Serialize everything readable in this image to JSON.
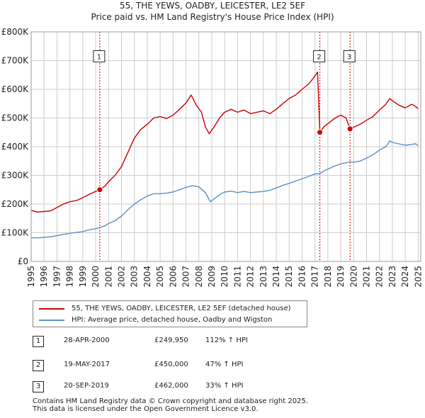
{
  "title": "55, THE YEWS, OADBY, LEICESTER, LE2 5EF",
  "subtitle": "Price paid vs. HM Land Registry's House Price Index (HPI)",
  "colors": {
    "property": "#cc0000",
    "hpi": "#5b8fc9",
    "grid": "#cccccc",
    "marker_line": "#cc0000"
  },
  "chart_data": {
    "type": "line",
    "title": "55, THE YEWS, OADBY, LEICESTER, LE2 5EF",
    "subtitle": "Price paid vs. HM Land Registry's House Price Index (HPI)",
    "xlabel": "",
    "ylabel": "",
    "xlim": [
      1995,
      2025.2
    ],
    "ylim": [
      0,
      800000
    ],
    "y_ticks": [
      0,
      100000,
      200000,
      300000,
      400000,
      500000,
      600000,
      700000,
      800000
    ],
    "y_tick_labels": [
      "£0",
      "£100K",
      "£200K",
      "£300K",
      "£400K",
      "£500K",
      "£600K",
      "£700K",
      "£800K"
    ],
    "x_ticks": [
      "1995",
      "1996",
      "1997",
      "1998",
      "1999",
      "2000",
      "2001",
      "2002",
      "2003",
      "2004",
      "2005",
      "2006",
      "2007",
      "2008",
      "2009",
      "2010",
      "2011",
      "2012",
      "2013",
      "2014",
      "2015",
      "2016",
      "2017",
      "2018",
      "2019",
      "2020",
      "2021",
      "2022",
      "2023",
      "2024",
      "2025"
    ],
    "grid": true,
    "series": [
      {
        "name": "55, THE YEWS, OADBY, LEICESTER, LE2 5EF (detached house)",
        "color": "#cc0000",
        "points": [
          [
            1995.0,
            178000
          ],
          [
            1995.5,
            172000
          ],
          [
            1996.0,
            174000
          ],
          [
            1996.5,
            176000
          ],
          [
            1997.0,
            188000
          ],
          [
            1997.5,
            200000
          ],
          [
            1998.0,
            208000
          ],
          [
            1998.5,
            212000
          ],
          [
            1999.0,
            222000
          ],
          [
            1999.5,
            234000
          ],
          [
            2000.0,
            244000
          ],
          [
            2000.32,
            249950
          ],
          [
            2000.7,
            262000
          ],
          [
            2001.0,
            278000
          ],
          [
            2001.5,
            300000
          ],
          [
            2002.0,
            330000
          ],
          [
            2002.5,
            380000
          ],
          [
            2003.0,
            430000
          ],
          [
            2003.5,
            460000
          ],
          [
            2004.0,
            478000
          ],
          [
            2004.5,
            500000
          ],
          [
            2005.0,
            505000
          ],
          [
            2005.5,
            498000
          ],
          [
            2006.0,
            510000
          ],
          [
            2006.5,
            530000
          ],
          [
            2007.0,
            552000
          ],
          [
            2007.4,
            580000
          ],
          [
            2007.8,
            545000
          ],
          [
            2008.2,
            520000
          ],
          [
            2008.5,
            470000
          ],
          [
            2008.8,
            445000
          ],
          [
            2009.2,
            470000
          ],
          [
            2009.6,
            500000
          ],
          [
            2010.0,
            520000
          ],
          [
            2010.5,
            530000
          ],
          [
            2011.0,
            520000
          ],
          [
            2011.5,
            528000
          ],
          [
            2012.0,
            515000
          ],
          [
            2012.5,
            520000
          ],
          [
            2013.0,
            525000
          ],
          [
            2013.5,
            515000
          ],
          [
            2014.0,
            530000
          ],
          [
            2014.5,
            550000
          ],
          [
            2015.0,
            568000
          ],
          [
            2015.5,
            580000
          ],
          [
            2016.0,
            600000
          ],
          [
            2016.5,
            618000
          ],
          [
            2016.9,
            640000
          ],
          [
            2017.2,
            660000
          ],
          [
            2017.38,
            450000
          ],
          [
            2017.7,
            470000
          ],
          [
            2018.0,
            480000
          ],
          [
            2018.5,
            498000
          ],
          [
            2019.0,
            510000
          ],
          [
            2019.4,
            500000
          ],
          [
            2019.72,
            462000
          ],
          [
            2020.0,
            468000
          ],
          [
            2020.5,
            478000
          ],
          [
            2021.0,
            492000
          ],
          [
            2021.5,
            505000
          ],
          [
            2022.0,
            528000
          ],
          [
            2022.5,
            548000
          ],
          [
            2022.8,
            568000
          ],
          [
            2023.0,
            560000
          ],
          [
            2023.5,
            545000
          ],
          [
            2024.0,
            535000
          ],
          [
            2024.5,
            548000
          ],
          [
            2024.8,
            540000
          ],
          [
            2025.0,
            532000
          ]
        ],
        "sales": [
          {
            "label": "1",
            "x": 2000.32,
            "y": 249950
          },
          {
            "label": "2",
            "x": 2017.38,
            "y": 450000
          },
          {
            "label": "3",
            "x": 2019.72,
            "y": 462000
          }
        ]
      },
      {
        "name": "HPI: Average price, detached house, Oadby and Wigston",
        "color": "#5b8fc9",
        "points": [
          [
            1995.0,
            83000
          ],
          [
            1995.5,
            82000
          ],
          [
            1996.0,
            84000
          ],
          [
            1996.5,
            86000
          ],
          [
            1997.0,
            90000
          ],
          [
            1997.5,
            94000
          ],
          [
            1998.0,
            98000
          ],
          [
            1998.5,
            101000
          ],
          [
            1999.0,
            104000
          ],
          [
            1999.5,
            110000
          ],
          [
            2000.0,
            114000
          ],
          [
            2000.32,
            118000
          ],
          [
            2000.7,
            124000
          ],
          [
            2001.0,
            132000
          ],
          [
            2001.5,
            142000
          ],
          [
            2002.0,
            158000
          ],
          [
            2002.5,
            180000
          ],
          [
            2003.0,
            200000
          ],
          [
            2003.5,
            215000
          ],
          [
            2004.0,
            228000
          ],
          [
            2004.5,
            236000
          ],
          [
            2005.0,
            236000
          ],
          [
            2005.5,
            238000
          ],
          [
            2006.0,
            242000
          ],
          [
            2006.5,
            250000
          ],
          [
            2007.0,
            258000
          ],
          [
            2007.5,
            264000
          ],
          [
            2008.0,
            260000
          ],
          [
            2008.5,
            240000
          ],
          [
            2008.9,
            208000
          ],
          [
            2009.3,
            222000
          ],
          [
            2009.8,
            238000
          ],
          [
            2010.0,
            242000
          ],
          [
            2010.5,
            245000
          ],
          [
            2011.0,
            240000
          ],
          [
            2011.5,
            244000
          ],
          [
            2012.0,
            240000
          ],
          [
            2012.5,
            242000
          ],
          [
            2013.0,
            244000
          ],
          [
            2013.5,
            248000
          ],
          [
            2014.0,
            256000
          ],
          [
            2014.5,
            265000
          ],
          [
            2015.0,
            272000
          ],
          [
            2015.5,
            280000
          ],
          [
            2016.0,
            288000
          ],
          [
            2016.5,
            296000
          ],
          [
            2017.0,
            305000
          ],
          [
            2017.38,
            306000
          ],
          [
            2017.8,
            318000
          ],
          [
            2018.0,
            322000
          ],
          [
            2018.5,
            332000
          ],
          [
            2019.0,
            340000
          ],
          [
            2019.72,
            347000
          ],
          [
            2020.0,
            346000
          ],
          [
            2020.5,
            350000
          ],
          [
            2021.0,
            360000
          ],
          [
            2021.5,
            372000
          ],
          [
            2022.0,
            388000
          ],
          [
            2022.5,
            400000
          ],
          [
            2022.8,
            420000
          ],
          [
            2023.0,
            415000
          ],
          [
            2023.5,
            410000
          ],
          [
            2024.0,
            405000
          ],
          [
            2024.5,
            408000
          ],
          [
            2024.8,
            410000
          ],
          [
            2025.0,
            404000
          ]
        ]
      }
    ]
  },
  "legend": {
    "items": [
      {
        "label": "55, THE YEWS, OADBY, LEICESTER, LE2 5EF (detached house)",
        "color": "#cc0000"
      },
      {
        "label": "HPI: Average price, detached house, Oadby and Wigston",
        "color": "#5b8fc9"
      }
    ]
  },
  "transactions": [
    {
      "num": "1",
      "date": "28-APR-2000",
      "price": "£249,950",
      "hpi": "112% ↑ HPI"
    },
    {
      "num": "2",
      "date": "19-MAY-2017",
      "price": "£450,000",
      "hpi": "47% ↑ HPI"
    },
    {
      "num": "3",
      "date": "20-SEP-2019",
      "price": "£462,000",
      "hpi": "33% ↑ HPI"
    }
  ],
  "footer": {
    "line1": "Contains HM Land Registry data © Crown copyright and database right 2025.",
    "line2": "This data is licensed under the Open Government Licence v3.0."
  }
}
